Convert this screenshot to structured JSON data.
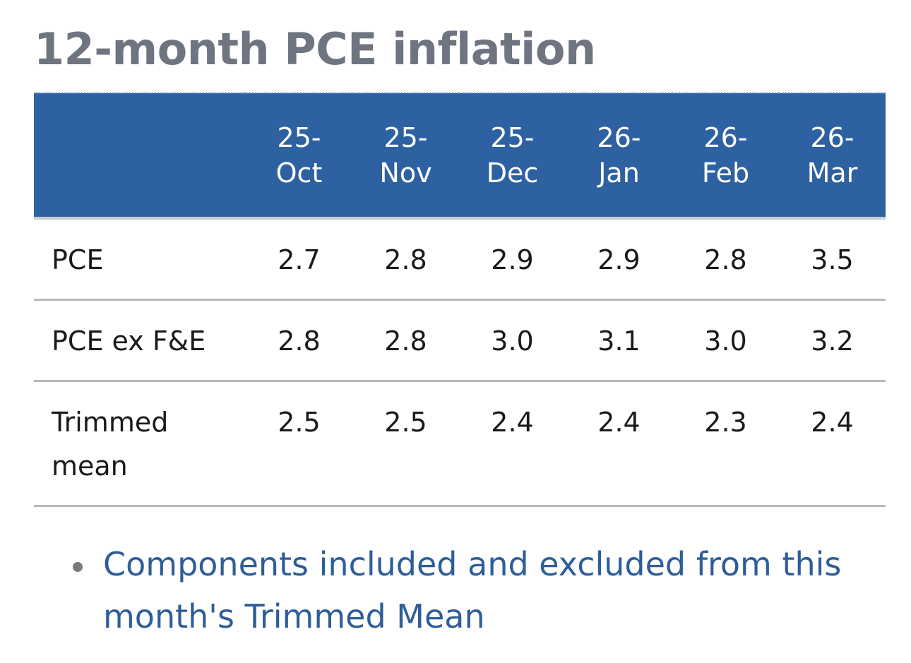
{
  "title": "12-month PCE inflation",
  "table": {
    "columns": [
      {
        "year": "25-",
        "month": "Oct"
      },
      {
        "year": "25-",
        "month": "Nov"
      },
      {
        "year": "25-",
        "month": "Dec"
      },
      {
        "year": "26-",
        "month": "Jan"
      },
      {
        "year": "26-",
        "month": "Feb"
      },
      {
        "year": "26-",
        "month": "Mar"
      }
    ],
    "rows": [
      {
        "label_line1": "PCE",
        "label_line2": "",
        "values": [
          "2.7",
          "2.8",
          "2.9",
          "2.9",
          "2.8",
          "3.5"
        ]
      },
      {
        "label_line1": "PCE ex F&E",
        "label_line2": "",
        "values": [
          "2.8",
          "2.8",
          "3.0",
          "3.1",
          "3.0",
          "3.2"
        ]
      },
      {
        "label_line1": "Trimmed",
        "label_line2": "mean",
        "values": [
          "2.5",
          "2.5",
          "2.4",
          "2.4",
          "2.3",
          "2.4"
        ]
      }
    ]
  },
  "links": {
    "trimmed_mean_components": "Components included and excluded from this month's Trimmed Mean"
  },
  "colors": {
    "header_bg": "#2e61a1",
    "title": "#6e7480",
    "link": "#2e5e99"
  }
}
